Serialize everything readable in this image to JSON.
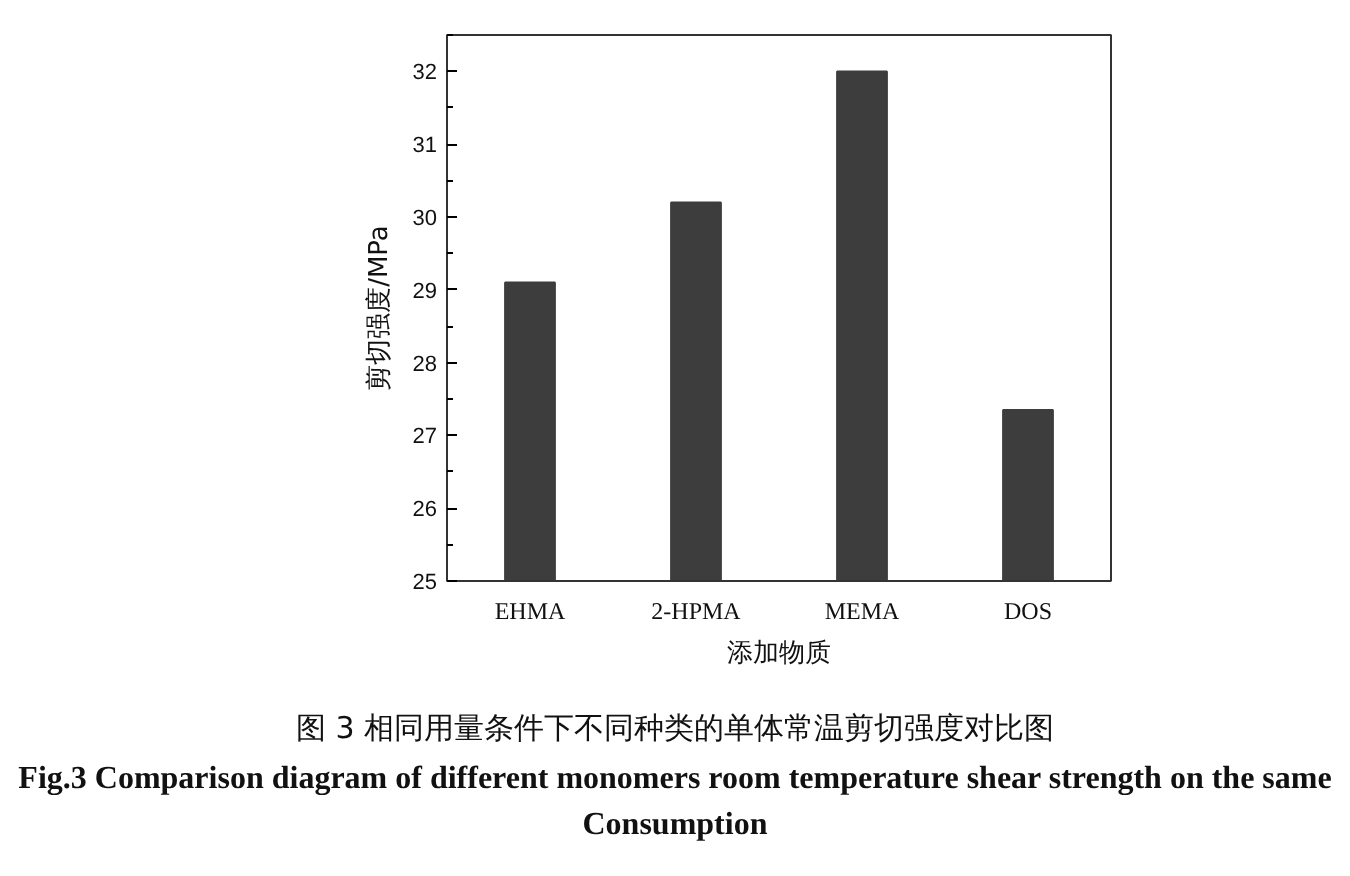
{
  "chart_data": {
    "type": "bar",
    "xlabel": "添加物质",
    "ylabel": "剪切强度/MPa",
    "categories": [
      "EHMA",
      "2-HPMA",
      "MEMA",
      "DOS"
    ],
    "values": [
      29.1,
      30.2,
      32.0,
      27.35
    ],
    "color": "#3d3d3d",
    "ylim": [
      25,
      32.5
    ],
    "yticks": [
      25,
      26,
      27,
      28,
      29,
      30,
      31,
      32
    ],
    "grid": false,
    "annotations": [
      "图 3 相同用量条件下不同种类的单体常温剪切强度对比图",
      "Fig.3 Comparison diagram of different monomers room temperature shear strength on the same Consumption"
    ]
  }
}
